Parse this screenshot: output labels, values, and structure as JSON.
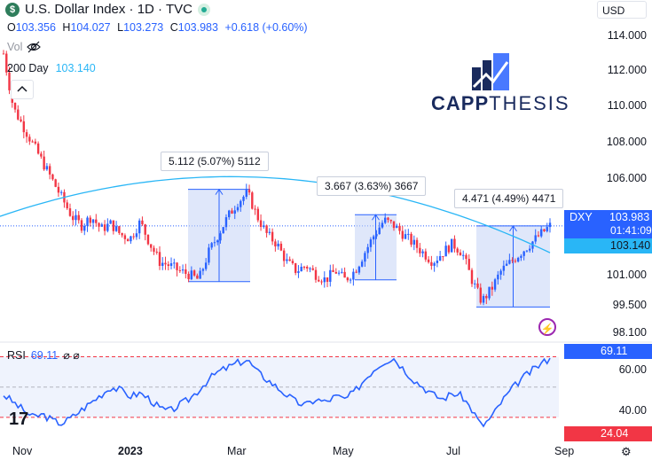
{
  "header": {
    "symbol_badge": "$",
    "title": "U.S. Dollar Index · 1D · TVC",
    "ohlc": {
      "open_key": "O",
      "open": "103.356",
      "high_key": "H",
      "high": "104.027",
      "low_key": "L",
      "low": "103.273",
      "close_key": "C",
      "close": "103.983",
      "change": "+0.618 (+0.60%)"
    },
    "vol_label": "Vol",
    "ma_label": "200 Day",
    "ma_value": "103.140",
    "collapse_icon": "chevron-up-icon"
  },
  "currency_button": "USD",
  "colors": {
    "up": "#2962ff",
    "down": "#f23645",
    "ma_line": "#29b6f6",
    "rsi_line": "#2962ff",
    "range_fill": "#c5d4f6",
    "dxy_tag": "#2962ff",
    "ma_tag": "#29b6f6",
    "rsi_tag": "#2962ff",
    "rsi_low_tag": "#f23645"
  },
  "price_axis": [
    "114.000",
    "112.000",
    "110.000",
    "108.000",
    "106.000",
    "101.000",
    "99.500",
    "98.100"
  ],
  "tags": {
    "dxy_label": "DXY",
    "dxy_price": "103.983",
    "countdown": "01:41:09",
    "ma_price": "103.140",
    "rsi_value": "69.11",
    "rsi_low": "24.04"
  },
  "callouts": [
    "5.112 (5.07%) 5112",
    "3.667 (3.63%) 3667",
    "4.471 (4.49%) 4471"
  ],
  "logo": {
    "part1": "CAPP",
    "part2": "THESIS"
  },
  "rsi": {
    "label": "RSI",
    "value": "69.11",
    "axis": [
      "60.00",
      "40.00"
    ]
  },
  "x_axis": [
    "Nov",
    "2023",
    "Mar",
    "May",
    "Jul",
    "Sep"
  ],
  "tv_logo": "17",
  "chart_data": [
    {
      "type": "candlestick",
      "title": "U.S. Dollar Index · 1D · TVC",
      "x": [
        "Nov",
        "2023",
        "Mar",
        "May",
        "Jul",
        "Sep"
      ],
      "ylim": [
        98.1,
        114.5
      ],
      "close_path": [
        113.5,
        110.5,
        109.5,
        108.5,
        107.5,
        106.5,
        105.5,
        104.5,
        104.0,
        104.5,
        103.8,
        104.1,
        103.5,
        103.3,
        104.2,
        103.0,
        102.0,
        101.8,
        101.5,
        101.3,
        101.0,
        102.5,
        103.5,
        104.5,
        105.3,
        105.8,
        104.5,
        103.5,
        103.0,
        102.0,
        101.5,
        101.8,
        101.3,
        101.0,
        101.5,
        101.0,
        101.5,
        102.5,
        103.5,
        104.3,
        104.0,
        103.5,
        103.0,
        102.5,
        102.0,
        102.5,
        103.0,
        102.5,
        101.0,
        99.8,
        100.5,
        101.5,
        102.0,
        102.5,
        103.0,
        103.5,
        103.98
      ],
      "moving_average": {
        "name": "200 Day",
        "value": 103.14
      },
      "measurements": [
        {
          "label": "5.112 (5.07%) 5112",
          "from": 100.9,
          "to": 106.0
        },
        {
          "label": "3.667 (3.63%) 3667",
          "from": 101.0,
          "to": 104.6
        },
        {
          "label": "4.471 (4.49%) 4471",
          "from": 99.5,
          "to": 103.98
        }
      ]
    },
    {
      "type": "line",
      "title": "RSI",
      "ylim": [
        20,
        75
      ],
      "series": [
        {
          "name": "RSI",
          "values": [
            45,
            40,
            35,
            30,
            32,
            28,
            26,
            30,
            35,
            40,
            45,
            50,
            48,
            44,
            46,
            42,
            36,
            34,
            38,
            42,
            48,
            55,
            60,
            63,
            66,
            68,
            60,
            55,
            50,
            45,
            40,
            38,
            42,
            40,
            44,
            42,
            47,
            55,
            62,
            67,
            69,
            62,
            55,
            50,
            45,
            42,
            46,
            44,
            35,
            24.04,
            30,
            40,
            48,
            55,
            60,
            65,
            69.11
          ]
        }
      ]
    }
  ]
}
